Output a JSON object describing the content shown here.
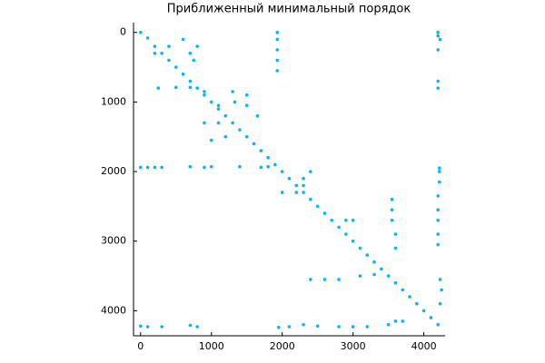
{
  "chart_data": {
    "type": "scatter",
    "title": "Приближенный минимальный порядок",
    "x": [
      0,
      100,
      200,
      300,
      400,
      500,
      600,
      700,
      800,
      900,
      1000,
      1100,
      1200,
      1300,
      1400,
      1500,
      1600,
      1700,
      1800,
      1900,
      2000,
      2100,
      2200,
      2300,
      2400,
      2500,
      2600,
      2700,
      2800,
      2900,
      3000,
      3100,
      3200,
      3300,
      3400,
      3500,
      3600,
      3700,
      3800,
      3900,
      4000,
      4100,
      4200,
      1930,
      1930,
      1930,
      1930,
      1930,
      4200,
      4200,
      4230,
      4200,
      4200,
      4200,
      0,
      100,
      200,
      300,
      700,
      900,
      1000,
      1400,
      1700,
      1800,
      4220,
      4220,
      4220,
      4200,
      4200,
      4200,
      4200,
      4200,
      0,
      100,
      300,
      700,
      800,
      1950,
      2100,
      2300,
      2500,
      2800,
      3000,
      3200,
      3500,
      3600,
      3700,
      2400,
      2600,
      2800,
      3100,
      3300,
      3550,
      3550,
      3550,
      3600,
      3600,
      4230,
      4250,
      4230,
      250,
      500,
      700,
      900,
      1300,
      1330,
      1100,
      1500,
      1500,
      900,
      1100,
      1000,
      1200,
      1650,
      2000,
      2200,
      2300,
      2400,
      2300,
      2900,
      3000,
      200,
      400,
      600,
      700,
      800,
      750
    ],
    "values": [
      0,
      80,
      200,
      300,
      400,
      500,
      600,
      700,
      800,
      900,
      1000,
      1100,
      1200,
      1300,
      1400,
      1500,
      1600,
      1700,
      1800,
      1900,
      2000,
      2100,
      2200,
      2300,
      2400,
      2500,
      2600,
      2700,
      2800,
      2900,
      3000,
      3100,
      3200,
      3300,
      3400,
      3500,
      3600,
      3700,
      3800,
      3900,
      4000,
      4100,
      4200,
      0,
      100,
      250,
      400,
      550,
      0,
      50,
      100,
      250,
      700,
      800,
      1940,
      1940,
      1940,
      1940,
      1930,
      1940,
      1930,
      1930,
      1940,
      1930,
      1950,
      2000,
      2150,
      2350,
      2550,
      2700,
      2900,
      3050,
      4220,
      4230,
      4230,
      4210,
      4230,
      4240,
      4230,
      4200,
      4220,
      4230,
      4230,
      4230,
      4200,
      4150,
      4150,
      3550,
      3550,
      3550,
      3500,
      3480,
      2400,
      2550,
      2700,
      2900,
      3100,
      3550,
      3700,
      3900,
      800,
      790,
      790,
      850,
      850,
      1000,
      1050,
      900,
      1050,
      1300,
      1300,
      1550,
      1500,
      1200,
      2300,
      2300,
      2100,
      2000,
      2200,
      2700,
      2700,
      300,
      200,
      100,
      300,
      200,
      400
    ],
    "color": "#0ab4ee",
    "xlim": [
      -100,
      4300
    ],
    "ylim": [
      -140,
      4360
    ],
    "y_reversed": true,
    "xticks": [
      0,
      1000,
      2000,
      3000,
      4000
    ],
    "yticks": [
      0,
      1000,
      2000,
      3000,
      4000
    ]
  }
}
